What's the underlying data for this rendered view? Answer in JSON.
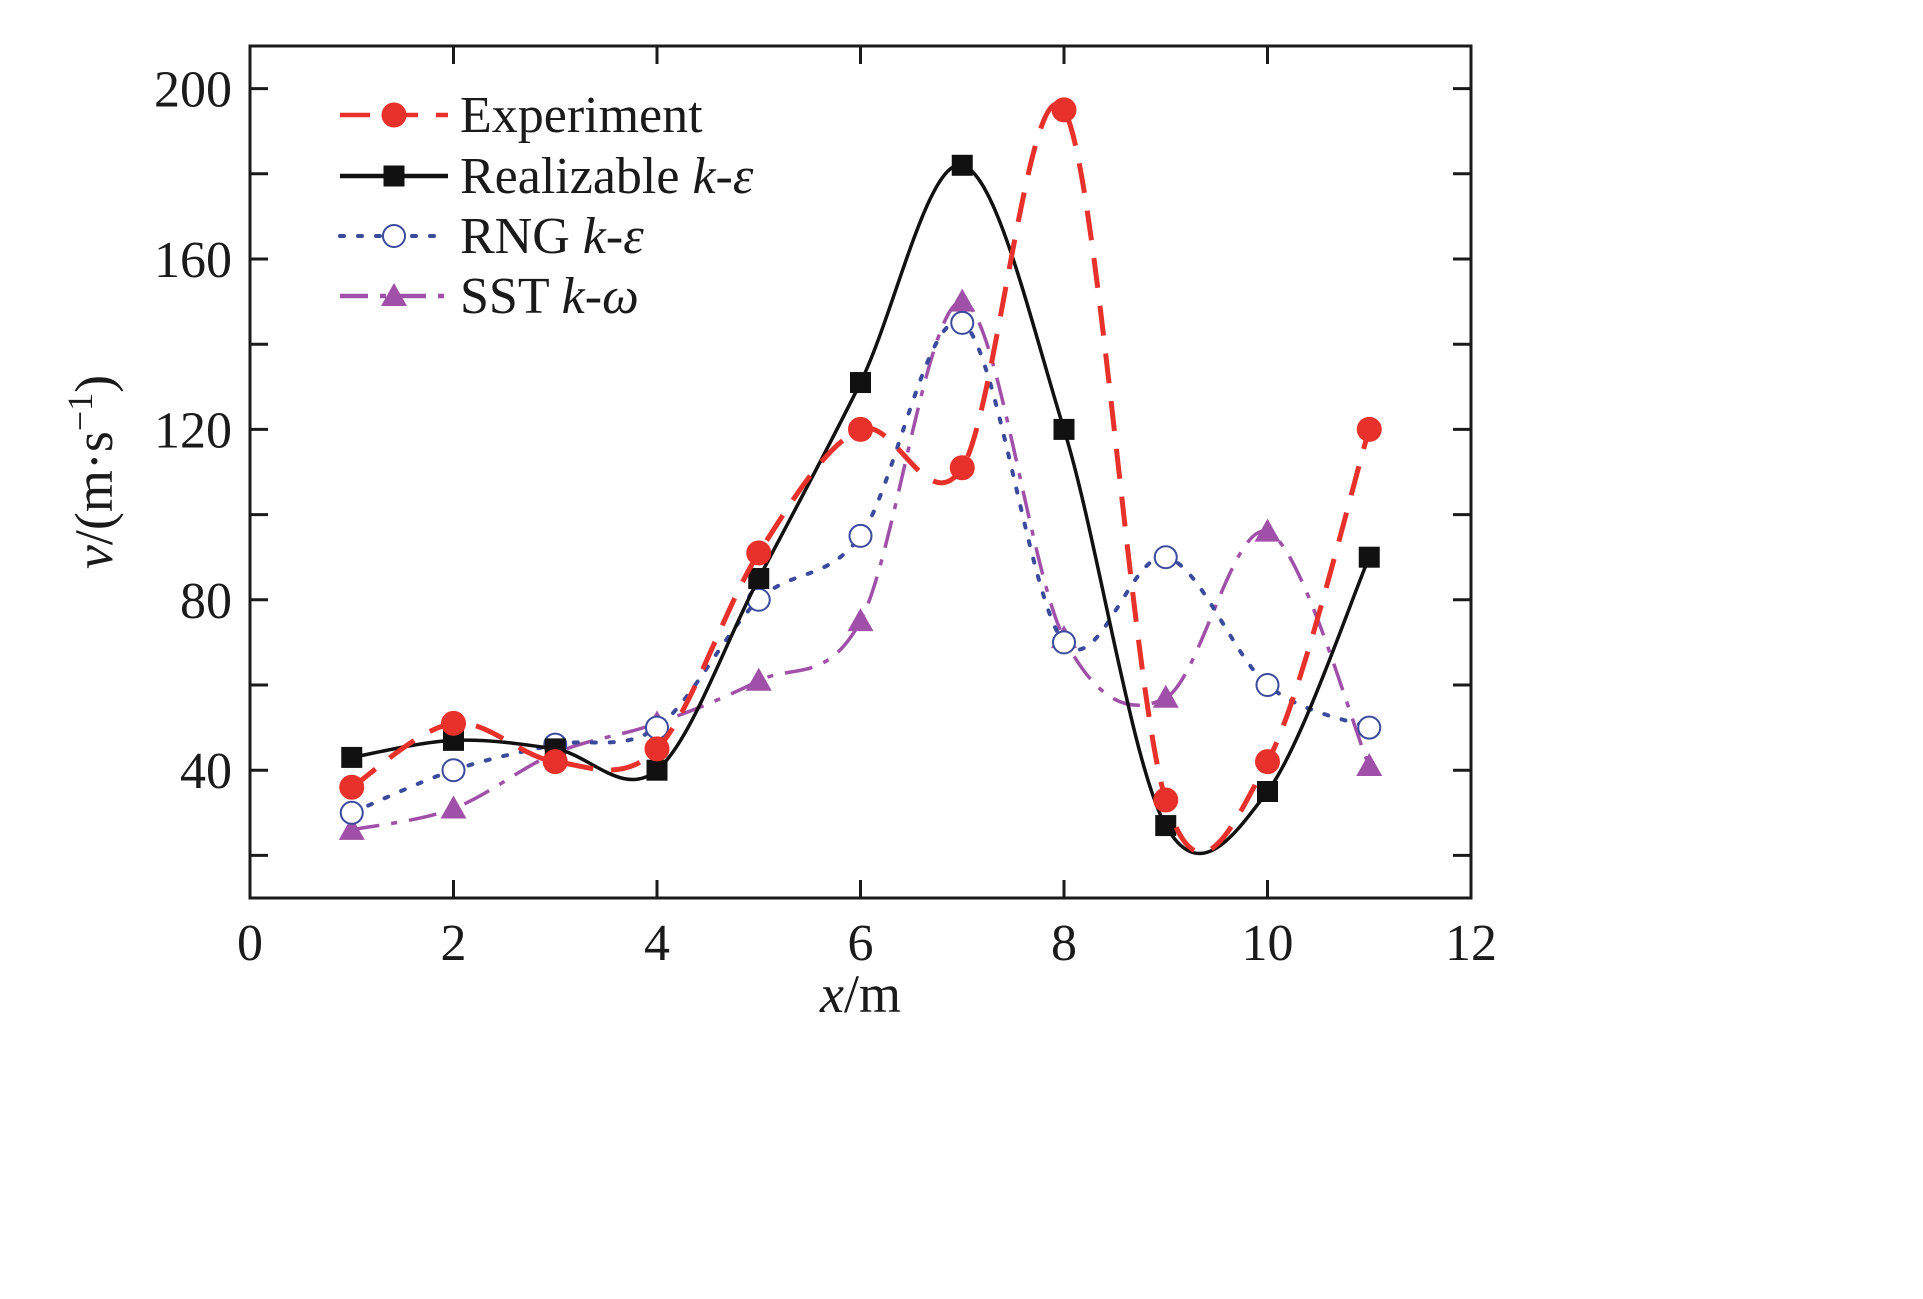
{
  "chart_data": {
    "type": "line",
    "xlabel": {
      "var": "x",
      "unit": "/m"
    },
    "ylabel": {
      "var": "v",
      "unit": "/(m·s",
      "sup": "−1",
      "close": ")"
    },
    "xlim": [
      0,
      12
    ],
    "ylim": [
      10,
      210
    ],
    "xticks": [
      0,
      2,
      4,
      6,
      8,
      10,
      12
    ],
    "xtick_labels": [
      "0",
      "2",
      "4",
      "6",
      "8",
      "10",
      "12"
    ],
    "yticks": [
      20,
      40,
      60,
      80,
      100,
      120,
      140,
      160,
      180,
      200
    ],
    "ytick_labels": [
      "",
      "40",
      "",
      "80",
      "",
      "120",
      "",
      "160",
      "",
      "200"
    ],
    "legend_position": "top-left",
    "series": [
      {
        "name_parts": [
          "Experiment"
        ],
        "color": "#e8312a",
        "marker": "filled-circle",
        "line": "dashed",
        "x": [
          1,
          2,
          3,
          4,
          5,
          6,
          7,
          8,
          9,
          10,
          11
        ],
        "y": [
          36,
          51,
          42,
          45,
          91,
          120,
          111,
          195,
          33,
          42,
          120
        ]
      },
      {
        "name_parts": [
          "Realizable ",
          "k",
          "-",
          "ε"
        ],
        "color": "#111111",
        "marker": "filled-square",
        "line": "solid",
        "x": [
          1,
          2,
          3,
          4,
          5,
          6,
          7,
          8,
          9,
          10,
          11
        ],
        "y": [
          43,
          47,
          45,
          40,
          85,
          131,
          182,
          120,
          27,
          35,
          90
        ]
      },
      {
        "name_parts": [
          "RNG ",
          "k",
          "-",
          "ε"
        ],
        "color": "#3a4a9c",
        "marker": "open-circle",
        "line": "dotted",
        "x": [
          1,
          2,
          3,
          4,
          5,
          6,
          7,
          8,
          9,
          10,
          11
        ],
        "y": [
          30,
          40,
          46,
          50,
          80,
          95,
          145,
          70,
          90,
          60,
          50
        ]
      },
      {
        "name_parts": [
          "SST ",
          "k",
          "-",
          "ω"
        ],
        "color": "#a050a8",
        "marker": "filled-triangle",
        "line": "dash-dot",
        "x": [
          1,
          2,
          3,
          4,
          5,
          6,
          7,
          8,
          9,
          10,
          11
        ],
        "y": [
          26,
          31,
          44,
          51,
          61,
          75,
          150,
          71,
          57,
          96,
          41
        ]
      }
    ]
  }
}
